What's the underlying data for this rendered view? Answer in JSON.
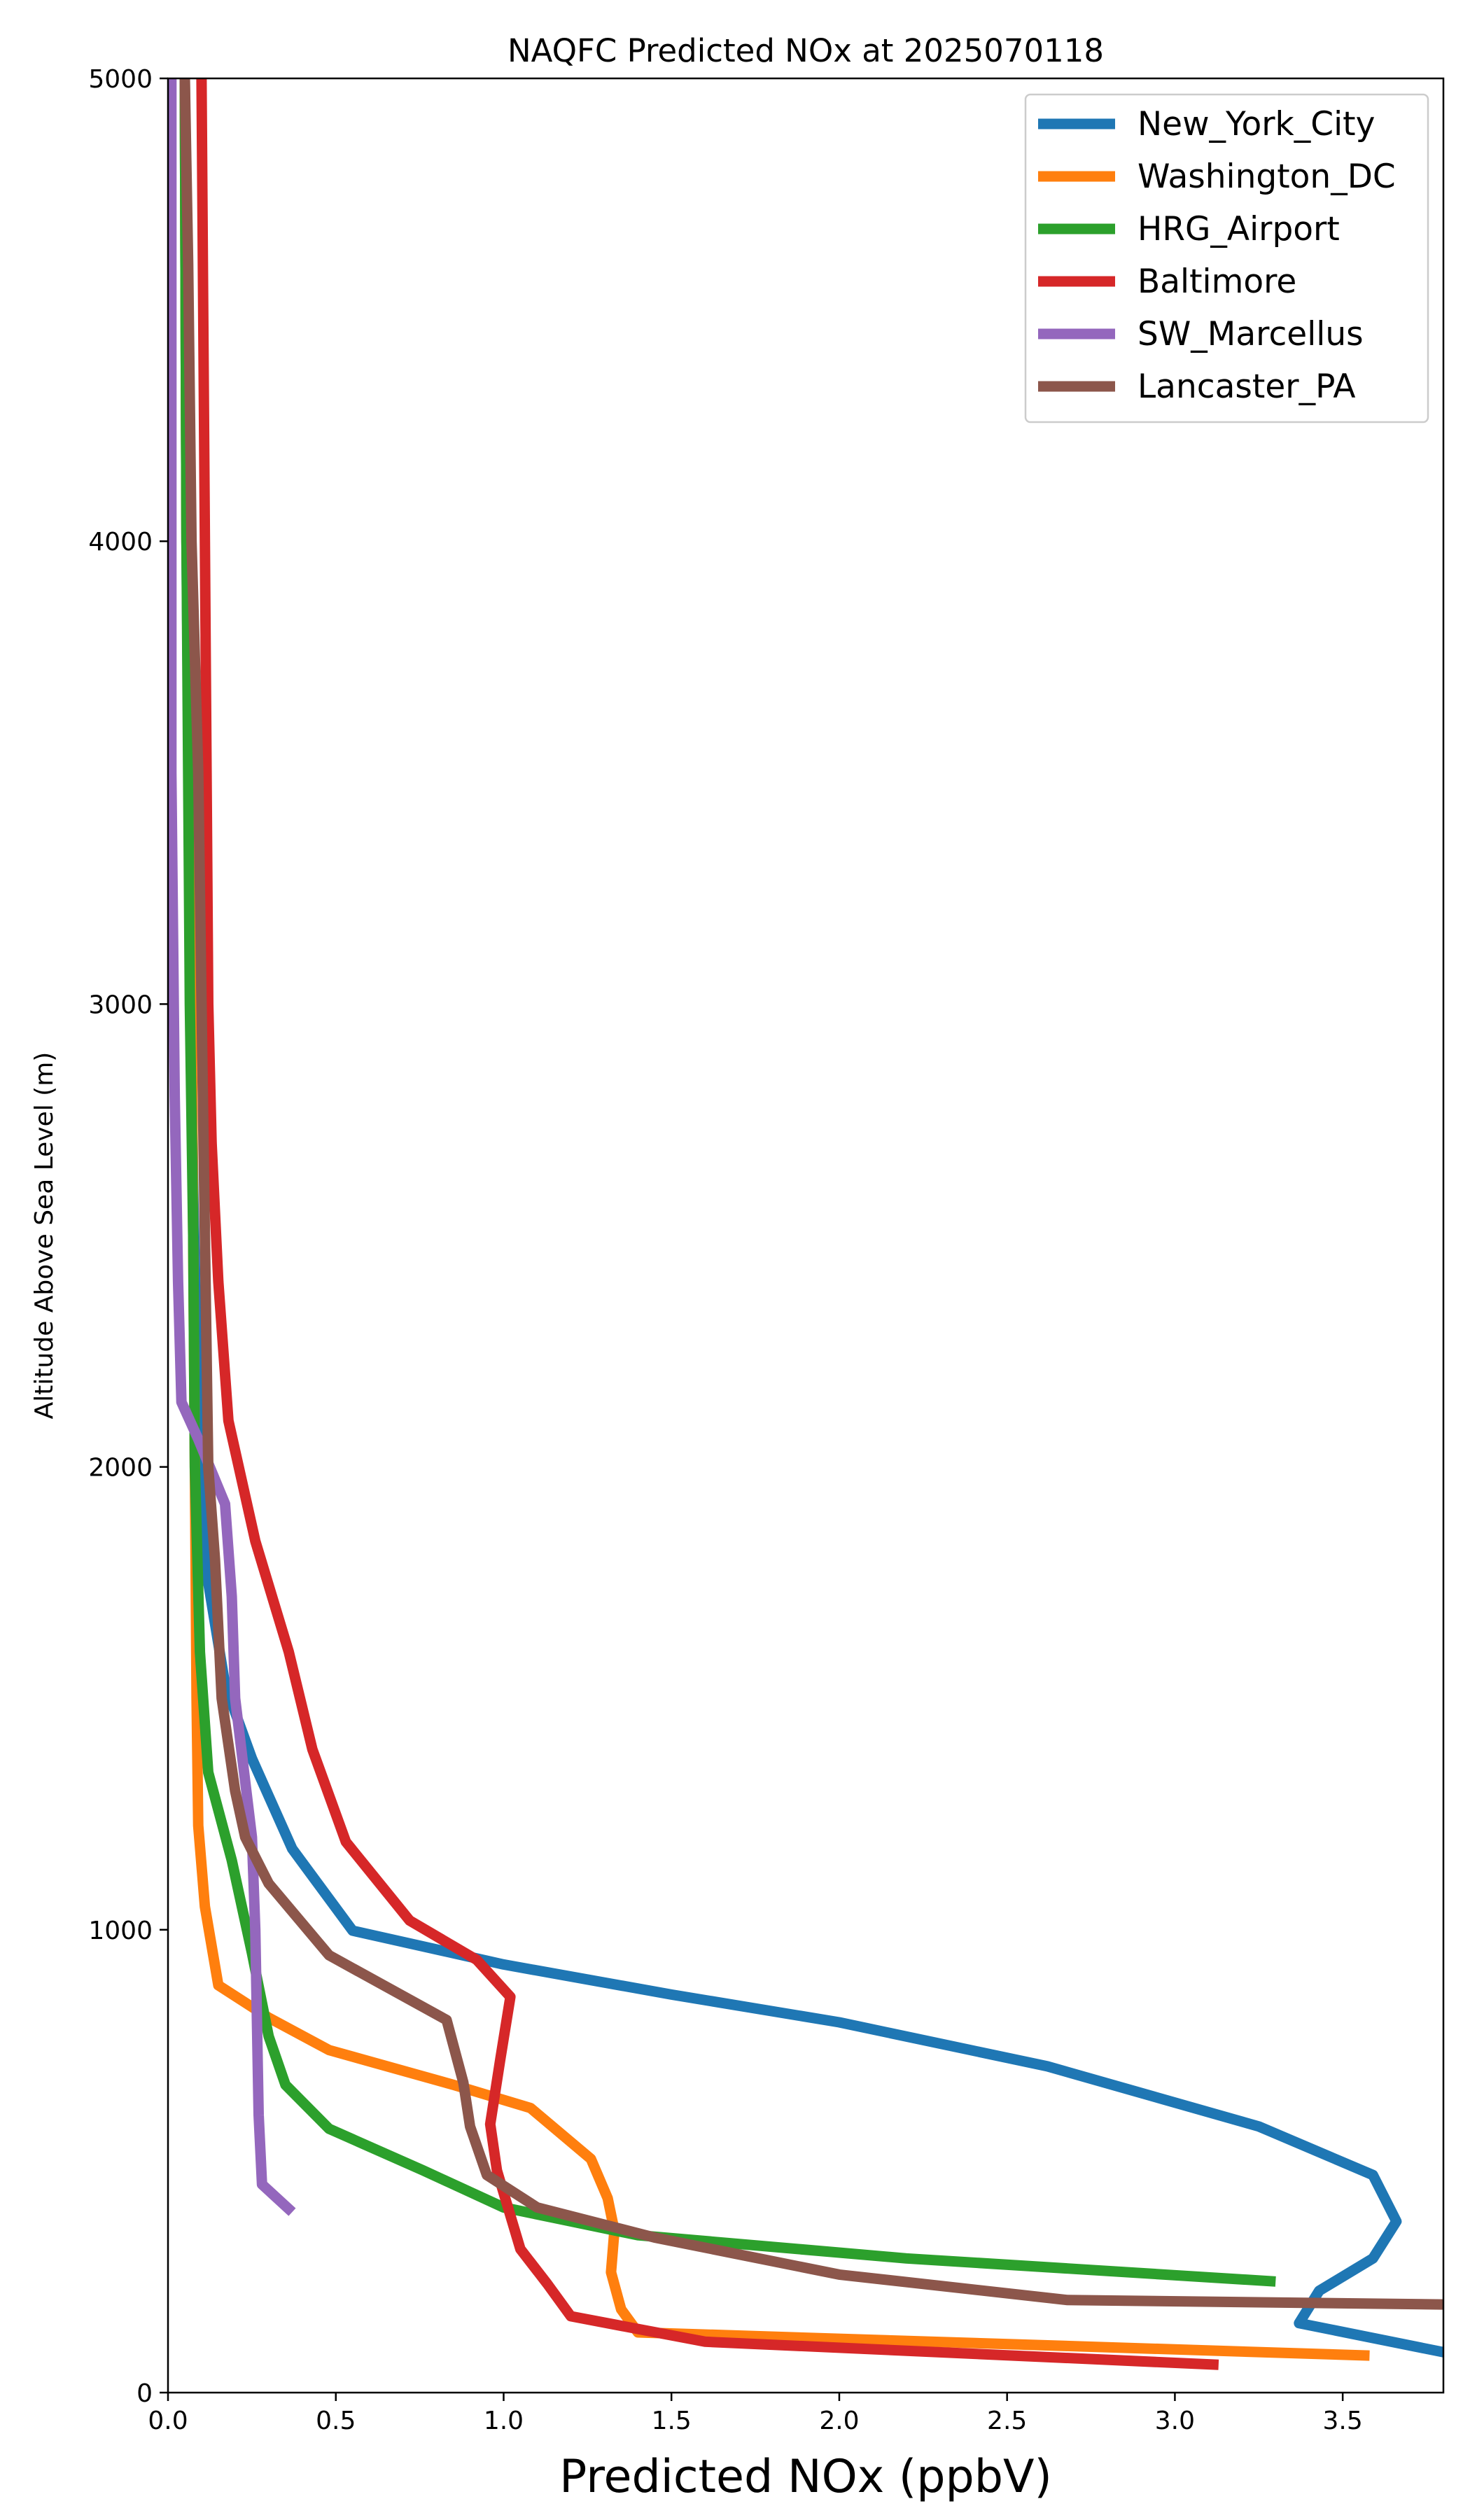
{
  "chart_data": {
    "type": "line",
    "title": "NAQFC Predicted NOx at 2025070118",
    "xlabel": "Predicted NOx (ppbV)",
    "ylabel": "Altitude Above Sea Level (m)",
    "xlim": [
      0,
      3.8
    ],
    "ylim": [
      0,
      5000
    ],
    "xticks": [
      0.0,
      0.5,
      1.0,
      1.5,
      2.0,
      2.5,
      3.0,
      3.5
    ],
    "xtick_labels": [
      "0.0",
      "0.5",
      "1.0",
      "1.5",
      "2.0",
      "2.5",
      "3.0",
      "3.5"
    ],
    "yticks": [
      0,
      1000,
      2000,
      3000,
      4000,
      5000
    ],
    "ytick_labels": [
      "0",
      "1000",
      "2000",
      "3000",
      "4000",
      "5000"
    ],
    "legend_position": "top-right",
    "grid": false,
    "series": [
      {
        "name": "New_York_City",
        "color": "#1f77b4",
        "points": [
          [
            3.85,
            80
          ],
          [
            3.37,
            150
          ],
          [
            3.43,
            220
          ],
          [
            3.59,
            290
          ],
          [
            3.66,
            370
          ],
          [
            3.59,
            470
          ],
          [
            3.25,
            575
          ],
          [
            2.62,
            705
          ],
          [
            2.0,
            800
          ],
          [
            1.5,
            860
          ],
          [
            1.0,
            925
          ],
          [
            0.55,
            998
          ],
          [
            0.37,
            1175
          ],
          [
            0.25,
            1370
          ],
          [
            0.17,
            1530
          ],
          [
            0.12,
            1750
          ],
          [
            0.09,
            2100
          ],
          [
            0.075,
            2600
          ],
          [
            0.065,
            3200
          ],
          [
            0.055,
            4000
          ],
          [
            0.05,
            5000
          ]
        ]
      },
      {
        "name": "Washington_DC",
        "color": "#ff7f0e",
        "points": [
          [
            3.58,
            80
          ],
          [
            1.4,
            130
          ],
          [
            1.35,
            180
          ],
          [
            1.32,
            260
          ],
          [
            1.33,
            350
          ],
          [
            1.31,
            420
          ],
          [
            1.26,
            505
          ],
          [
            1.08,
            615
          ],
          [
            0.85,
            665
          ],
          [
            0.48,
            740
          ],
          [
            0.3,
            810
          ],
          [
            0.15,
            880
          ],
          [
            0.11,
            1050
          ],
          [
            0.09,
            1225
          ],
          [
            0.085,
            1500
          ],
          [
            0.08,
            2000
          ],
          [
            0.075,
            2500
          ],
          [
            0.07,
            3000
          ],
          [
            0.065,
            3500
          ],
          [
            0.055,
            4000
          ],
          [
            0.05,
            5000
          ]
        ]
      },
      {
        "name": "HRG_Airport",
        "color": "#2ca02c",
        "points": [
          [
            3.3,
            240
          ],
          [
            2.2,
            290
          ],
          [
            1.4,
            340
          ],
          [
            1.0,
            400
          ],
          [
            0.76,
            480
          ],
          [
            0.48,
            570
          ],
          [
            0.35,
            665
          ],
          [
            0.3,
            770
          ],
          [
            0.25,
            950
          ],
          [
            0.19,
            1150
          ],
          [
            0.12,
            1340
          ],
          [
            0.095,
            1600
          ],
          [
            0.08,
            2000
          ],
          [
            0.075,
            2500
          ],
          [
            0.065,
            3000
          ],
          [
            0.055,
            4000
          ],
          [
            0.05,
            5000
          ]
        ]
      },
      {
        "name": "Baltimore",
        "color": "#d62728",
        "points": [
          [
            3.13,
            60
          ],
          [
            1.6,
            110
          ],
          [
            1.2,
            165
          ],
          [
            1.13,
            235
          ],
          [
            1.05,
            310
          ],
          [
            0.98,
            480
          ],
          [
            0.96,
            580
          ],
          [
            0.99,
            720
          ],
          [
            1.02,
            855
          ],
          [
            0.92,
            935
          ],
          [
            0.72,
            1020
          ],
          [
            0.53,
            1190
          ],
          [
            0.43,
            1390
          ],
          [
            0.36,
            1600
          ],
          [
            0.26,
            1840
          ],
          [
            0.18,
            2100
          ],
          [
            0.15,
            2400
          ],
          [
            0.13,
            2700
          ],
          [
            0.12,
            3000
          ],
          [
            0.115,
            3500
          ],
          [
            0.11,
            4000
          ],
          [
            0.1,
            5000
          ]
        ]
      },
      {
        "name": "SW_Marcellus",
        "color": "#9467bd",
        "points": [
          [
            0.37,
            390
          ],
          [
            0.28,
            450
          ],
          [
            0.27,
            600
          ],
          [
            0.265,
            800
          ],
          [
            0.26,
            1000
          ],
          [
            0.25,
            1200
          ],
          [
            0.2,
            1500
          ],
          [
            0.19,
            1720
          ],
          [
            0.17,
            1920
          ],
          [
            0.09,
            2060
          ],
          [
            0.04,
            2140
          ],
          [
            0.03,
            2400
          ],
          [
            0.02,
            2800
          ],
          [
            0.01,
            3500
          ],
          [
            0.01,
            5000
          ]
        ]
      },
      {
        "name": "Lancaster_PA",
        "color": "#8c564b",
        "points": [
          [
            3.85,
            190
          ],
          [
            2.68,
            200
          ],
          [
            2.0,
            255
          ],
          [
            1.45,
            335
          ],
          [
            1.1,
            400
          ],
          [
            0.95,
            470
          ],
          [
            0.9,
            575
          ],
          [
            0.88,
            670
          ],
          [
            0.83,
            805
          ],
          [
            0.48,
            945
          ],
          [
            0.3,
            1100
          ],
          [
            0.23,
            1200
          ],
          [
            0.2,
            1300
          ],
          [
            0.16,
            1500
          ],
          [
            0.14,
            1800
          ],
          [
            0.12,
            2000
          ],
          [
            0.11,
            2500
          ],
          [
            0.1,
            3000
          ],
          [
            0.09,
            3500
          ],
          [
            0.07,
            4000
          ],
          [
            0.06,
            4600
          ],
          [
            0.05,
            5000
          ]
        ]
      }
    ]
  }
}
